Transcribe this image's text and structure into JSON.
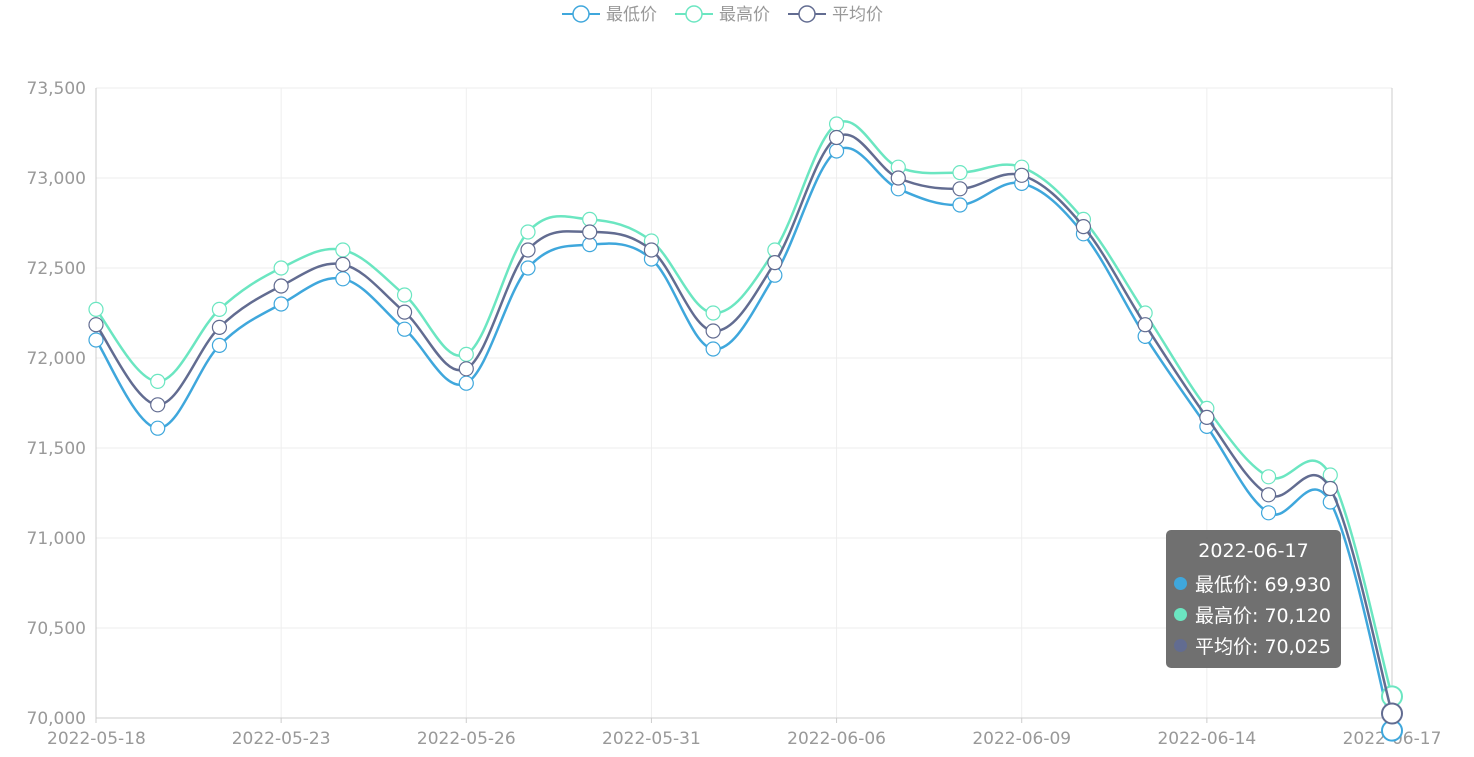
{
  "chart_data": {
    "type": "line",
    "smooth": true,
    "legend_position": "top-center",
    "grid": true,
    "ylim": [
      70000,
      73500
    ],
    "yticks": [
      "70,000",
      "70,500",
      "71,000",
      "71,500",
      "72,000",
      "72,500",
      "73,000",
      "73,500"
    ],
    "ytick_values": [
      70000,
      70500,
      71000,
      71500,
      72000,
      72500,
      73000,
      73500
    ],
    "xtick_labels": [
      "2022-05-18",
      "2022-05-23",
      "2022-05-26",
      "2022-05-31",
      "2022-06-06",
      "2022-06-09",
      "2022-06-14",
      "2022-06-17"
    ],
    "xtick_indices": [
      0,
      3,
      6,
      9,
      12,
      15,
      18,
      21
    ],
    "x_points": 22,
    "series": [
      {
        "name": "最低价",
        "color": "#3fa7dc",
        "values": [
          72100,
          71610,
          72070,
          72300,
          72440,
          72160,
          71860,
          72500,
          72630,
          72550,
          72050,
          72460,
          73150,
          72940,
          72850,
          72970,
          72690,
          72120,
          71620,
          71140,
          71200,
          69930
        ]
      },
      {
        "name": "最高价",
        "color": "#6be6c1",
        "values": [
          72270,
          71870,
          72270,
          72500,
          72600,
          72350,
          72020,
          72700,
          72770,
          72650,
          72250,
          72600,
          73300,
          73060,
          73030,
          73060,
          72770,
          72250,
          71720,
          71340,
          71350,
          70120
        ]
      },
      {
        "name": "平均价",
        "color": "#626c91",
        "values": [
          72185,
          71740,
          72170,
          72400,
          72520,
          72255,
          71940,
          72600,
          72700,
          72600,
          72150,
          72530,
          73225,
          73000,
          72940,
          73015,
          72730,
          72185,
          71670,
          71240,
          71275,
          70025
        ]
      }
    ]
  },
  "tooltip": {
    "title": "2022-06-17",
    "rows": [
      {
        "label": "最低价: 69,930",
        "color": "#3fa7dc"
      },
      {
        "label": "最高价: 70,120",
        "color": "#6be6c1"
      },
      {
        "label": "平均价: 70,025",
        "color": "#626c91"
      }
    ]
  }
}
